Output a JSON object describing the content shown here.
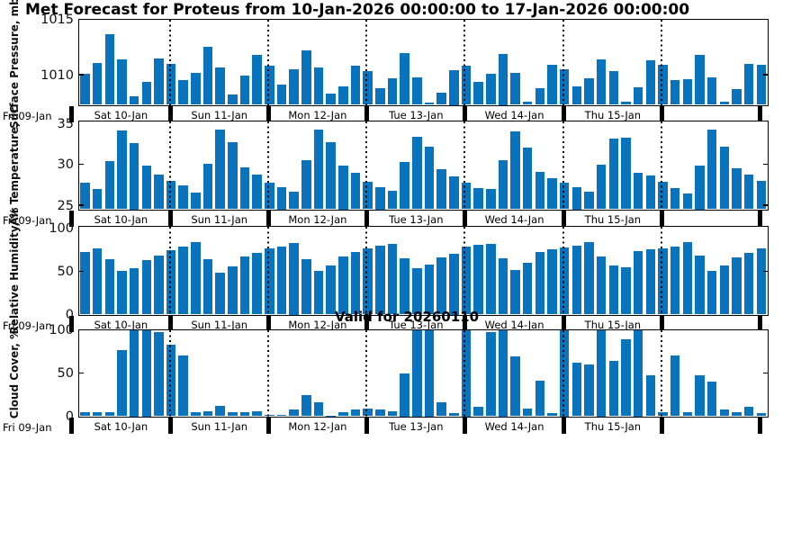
{
  "title": "Met Forecast for Proteus from 10-Jan-2026 00:00:00 to 17-Jan-2026 00:00:00",
  "annotation": "Valid for 20260110",
  "colors": {
    "bar": "#0a73bd",
    "axis": "#000000"
  },
  "axis": {
    "start_label": "Fri 09-Jan",
    "day_labels": [
      "Sat 10-Jan",
      "Sun 11-Jan",
      "Mon 12-Jan",
      "Tue 13-Jan",
      "Wed 14-Jan",
      "Thu 15-Jan"
    ],
    "bars_per_day": 8,
    "interval_hours": 3
  },
  "chart_data": [
    {
      "id": "surface-pressure",
      "type": "bar",
      "ylabel": "Surface Pressure, mb",
      "yticks": [
        1010,
        1015
      ],
      "ylim": [
        1007.3,
        1015
      ],
      "values": [
        1010.1,
        1011.1,
        1013.7,
        1011.4,
        1008.1,
        1009.4,
        1011.5,
        1011.0,
        1009.5,
        1010.2,
        1012.5,
        1010.7,
        1008.2,
        1009.9,
        1011.8,
        1010.8,
        1009.1,
        1010.5,
        1012.2,
        1010.7,
        1008.3,
        1009.0,
        1010.8,
        1010.3,
        1008.8,
        1009.7,
        1012.0,
        1009.8,
        1007.5,
        1008.4,
        1010.4,
        1010.8,
        1009.4,
        1010.1,
        1011.9,
        1010.2,
        1007.6,
        1008.8,
        1010.9,
        1010.5,
        1009.0,
        1009.7,
        1011.4,
        1010.3,
        1007.6,
        1008.9,
        1011.3,
        1010.9,
        1009.5,
        1009.6,
        1011.8,
        1009.8,
        1007.6,
        1008.7,
        1011.0,
        1010.9
      ]
    },
    {
      "id": "air-temperature",
      "type": "bar",
      "ylabel": "Air Temperature, °C",
      "yticks": [
        25,
        30,
        35
      ],
      "ylim": [
        24.5,
        35.3
      ],
      "values": [
        27.7,
        27.0,
        30.4,
        34.1,
        32.6,
        29.8,
        28.7,
        28.0,
        27.4,
        26.5,
        30.1,
        34.3,
        32.7,
        29.6,
        28.7,
        27.8,
        27.2,
        26.7,
        30.5,
        34.2,
        32.7,
        29.9,
        29.0,
        27.9,
        27.2,
        26.8,
        30.3,
        33.4,
        32.2,
        29.4,
        28.5,
        27.7,
        27.1,
        27.0,
        30.5,
        34.0,
        32.1,
        29.1,
        28.3,
        27.7,
        27.2,
        26.7,
        30.0,
        33.1,
        33.3,
        29.0,
        28.6,
        27.9,
        27.1,
        26.4,
        29.9,
        34.2,
        32.2,
        29.5,
        28.7,
        28.0
      ]
    },
    {
      "id": "relative-humidity",
      "type": "bar",
      "ylabel": "Relative Humidity, %",
      "yticks": [
        0,
        50,
        100
      ],
      "ylim": [
        0,
        102
      ],
      "values": [
        72,
        77,
        64,
        50,
        54,
        63,
        68,
        74,
        79,
        84,
        64,
        48,
        56,
        67,
        71,
        77,
        79,
        83,
        64,
        50,
        57,
        67,
        72,
        77,
        80,
        82,
        65,
        54,
        58,
        66,
        70,
        79,
        81,
        82,
        65,
        52,
        60,
        72,
        75,
        78,
        80,
        84,
        67,
        57,
        55,
        73,
        75,
        77,
        79,
        84,
        68,
        50,
        57,
        66,
        71,
        76
      ]
    },
    {
      "id": "cloud-cover",
      "type": "bar",
      "ylabel": "Cloud Cover, %",
      "yticks": [
        0,
        50,
        100
      ],
      "ylim": [
        0,
        100
      ],
      "values": [
        5,
        5,
        5,
        77,
        100,
        100,
        97,
        83,
        70,
        5,
        6,
        12,
        5,
        5,
        6,
        2,
        2,
        8,
        24,
        16,
        1,
        5,
        8,
        9,
        8,
        6,
        50,
        100,
        100,
        16,
        4,
        100,
        11,
        97,
        100,
        69,
        9,
        41,
        4,
        100,
        62,
        60,
        100,
        64,
        89,
        100,
        47,
        5,
        70,
        5,
        47,
        40,
        8,
        5,
        11,
        4
      ]
    }
  ]
}
